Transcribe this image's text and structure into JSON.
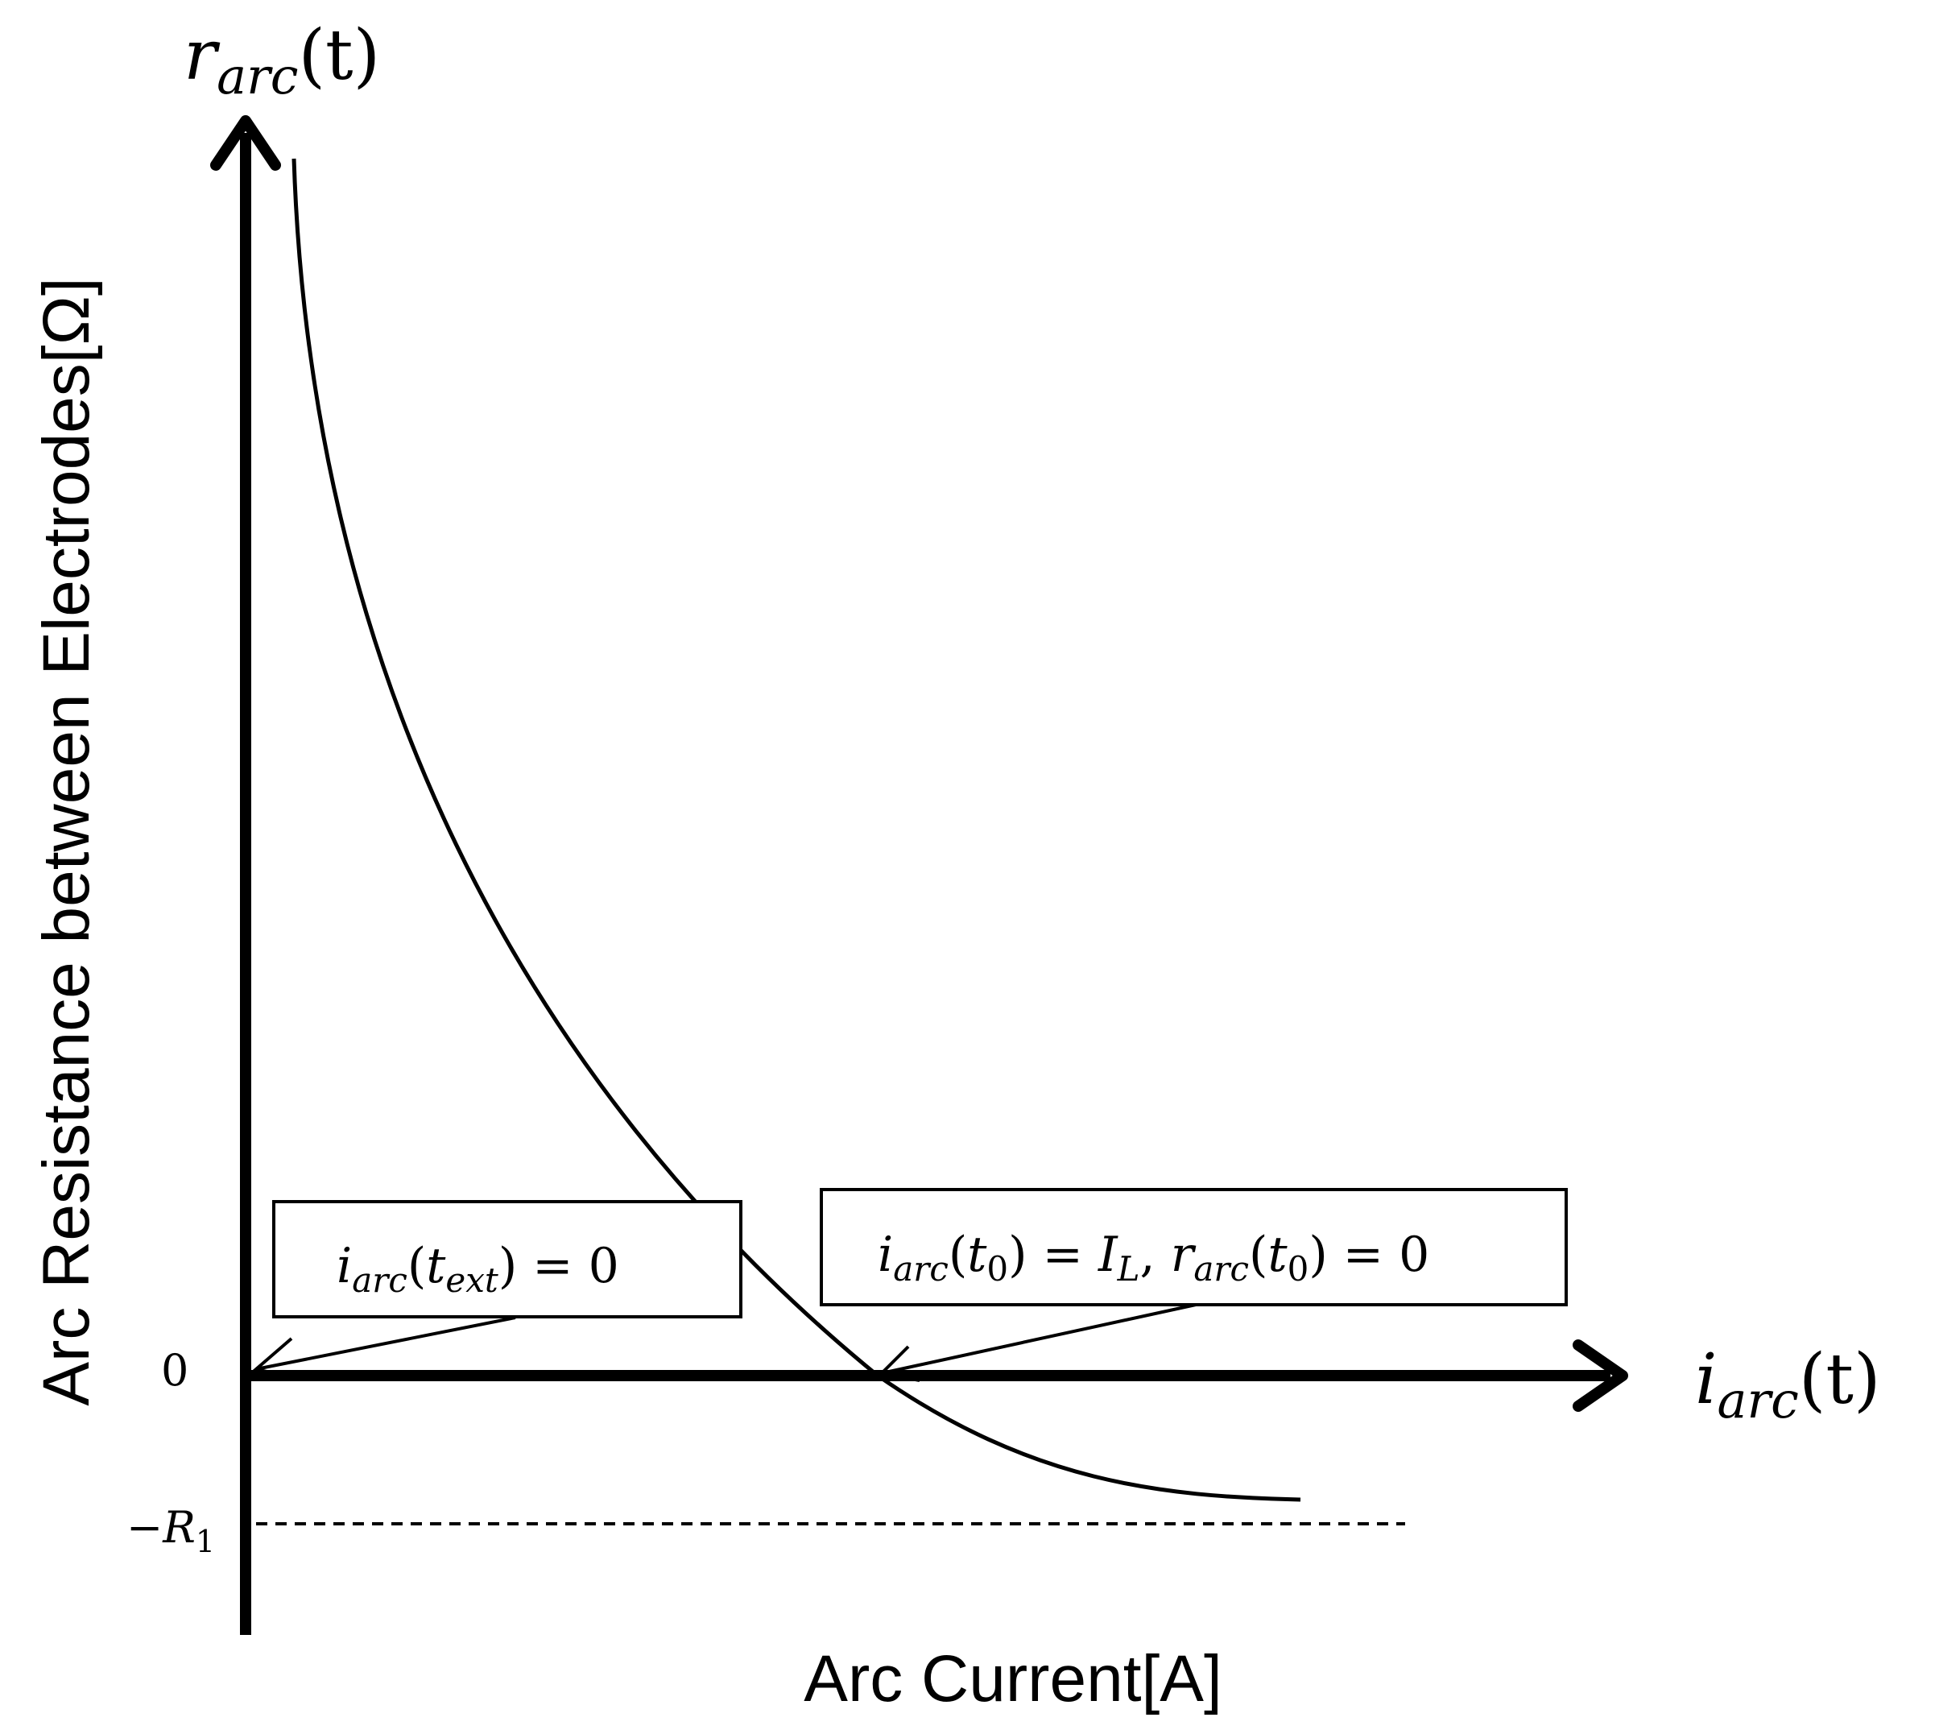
{
  "diagram": {
    "y_axis": {
      "symbol": {
        "base": "r",
        "sub": "arc",
        "arg": "(t)"
      },
      "label": "Arc Resistance between Electrodes[Ω]"
    },
    "x_axis": {
      "symbol": {
        "base": "i",
        "sub": "arc",
        "arg": "(t)"
      },
      "label": "Arc Current[A]"
    },
    "ticks": {
      "zero": "0",
      "neg_r1": {
        "prefix": "−R",
        "sub": "1"
      }
    },
    "annotations": [
      {
        "id": "extinction",
        "text": "i_arc(t_ext) = 0"
      },
      {
        "id": "initial",
        "text": "i_arc(t_0) = I_L, r_arc(t_0) = 0"
      }
    ],
    "curve": {
      "description_shape": "decreasing convex curve crossing zero and approaching −R1 asymptote"
    }
  }
}
